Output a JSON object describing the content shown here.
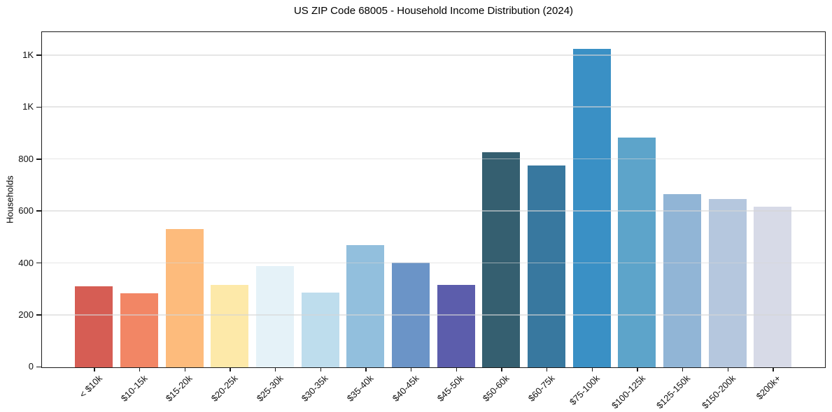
{
  "chart_data": {
    "type": "bar",
    "title": "US ZIP Code 68005 - Household Income Distribution (2024)",
    "xlabel": "",
    "ylabel": "Households",
    "categories": [
      "< $10k",
      "$10-15k",
      "$15-20k",
      "$20-25k",
      "$25-30k",
      "$30-35k",
      "$35-40k",
      "$40-45k",
      "$45-50k",
      "$50-60k",
      "$60-75k",
      "$75-100k",
      "$100-125k",
      "$125-150k",
      "$150-200k",
      "$200k+"
    ],
    "values": [
      313,
      286,
      532,
      318,
      389,
      288,
      470,
      402,
      318,
      828,
      778,
      1225,
      884,
      666,
      648,
      619
    ],
    "bar_colors": [
      "#d65d54",
      "#f28665",
      "#fdbb7c",
      "#fde9a9",
      "#e5f2f8",
      "#bedded",
      "#92bfdd",
      "#6b94c7",
      "#5c5dac",
      "#355f70",
      "#38789f",
      "#3a90c5",
      "#5da4ca",
      "#91b5d6",
      "#b5c7de",
      "#d7dae7"
    ],
    "ylim": [
      0,
      1287
    ],
    "yticks": {
      "values": [
        0,
        200,
        400,
        600,
        800,
        1000,
        1200
      ],
      "labels": [
        "0",
        "200",
        "400",
        "600",
        "800",
        "1K",
        "1K"
      ]
    },
    "grid": "horizontal-over-bars",
    "legend": "none",
    "spine_color": "#1a1a1a",
    "grid_color": "#e6e6e6",
    "background_color": "#ffffff"
  }
}
